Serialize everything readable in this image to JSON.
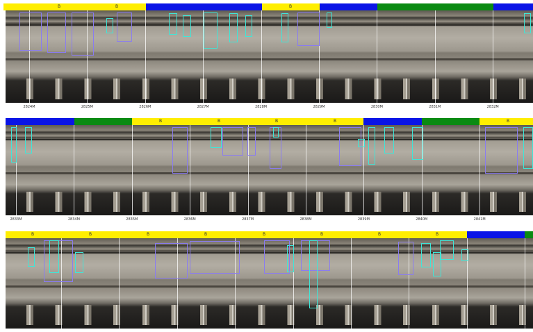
{
  "strips": [
    {
      "bar_labels": [
        "B",
        "B",
        "B"
      ],
      "miles": [
        "2824M",
        "2825M",
        "2826M",
        "2827M",
        "2828M",
        "2829M",
        "2830M",
        "2831M",
        "2832M"
      ]
    },
    {
      "bar_labels": [
        "B",
        "B",
        "B",
        "B",
        "B"
      ],
      "miles": [
        "2833M",
        "2834M",
        "2835M",
        "2836M",
        "2837M",
        "2838M",
        "2839M",
        "2840M",
        "2841M"
      ]
    },
    {
      "bar_labels": [
        "B",
        "B",
        "B",
        "B",
        "B",
        "B",
        "B",
        "B"
      ]
    }
  ]
}
